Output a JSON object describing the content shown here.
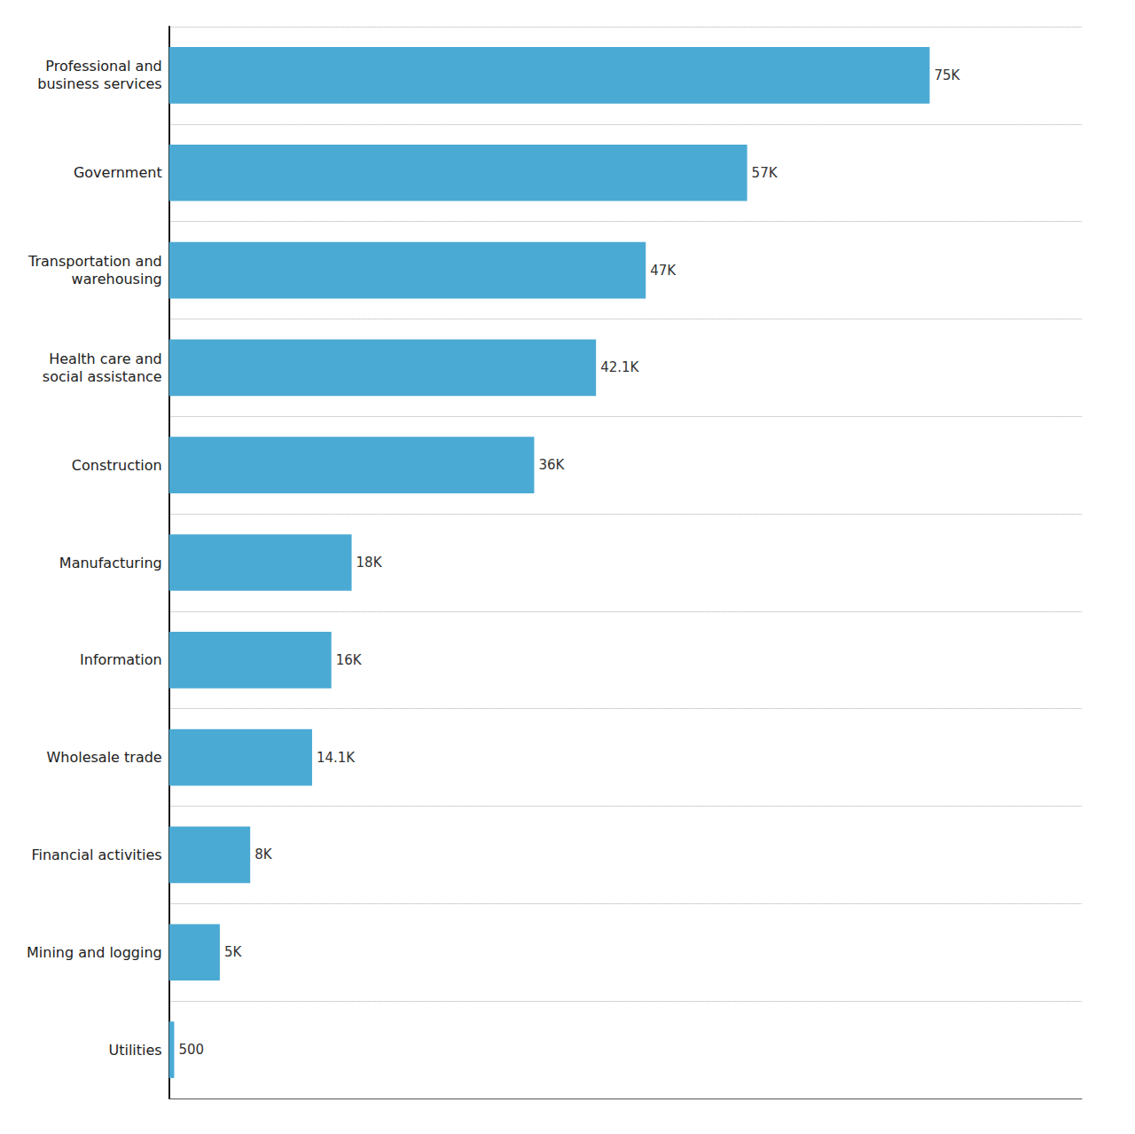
{
  "chart_data": {
    "type": "bar",
    "orientation": "horizontal",
    "categories": [
      "Professional and\nbusiness services",
      "Government",
      "Transportation and\nwarehousing",
      "Health care and\nsocial assistance",
      "Construction",
      "Manufacturing",
      "Information",
      "Wholesale trade",
      "Financial activities",
      "Mining and logging",
      "Utilities"
    ],
    "values": [
      75000,
      57000,
      47000,
      42100,
      36000,
      18000,
      16000,
      14100,
      8000,
      5000,
      500
    ],
    "value_labels": [
      "75K",
      "57K",
      "47K",
      "42.1K",
      "36K",
      "18K",
      "16K",
      "14.1K",
      "8K",
      "5K",
      "500"
    ],
    "data_labels": true,
    "color": "#4BAAD3",
    "xlim": [
      0,
      90000
    ],
    "tick_labels": "y",
    "grid": true
  }
}
